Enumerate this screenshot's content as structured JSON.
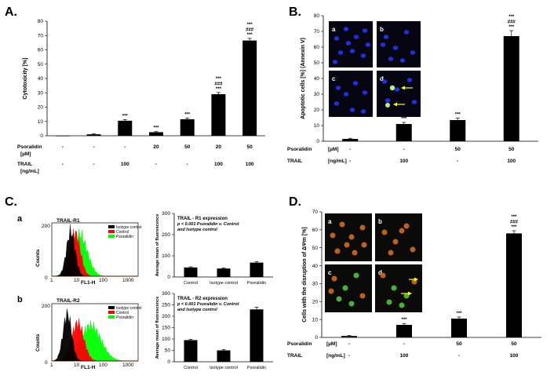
{
  "figure": {
    "panel_letters": [
      "A.",
      "B.",
      "C.",
      "D."
    ],
    "colors": {
      "bar": "#000000",
      "hist_isotype": "#000000",
      "hist_control": "#ff0000",
      "hist_psoralidin": "#00ff00",
      "nuclei_blue": "#2030e0",
      "apoptotic_green": "#b8f07a",
      "jc1_orange": "#d06a20",
      "jc1_green": "#50c040",
      "arrow": "#ffff00"
    },
    "icons": [
      "arrow-right-icon"
    ],
    "micrograph_labels_B": [
      "a",
      "b",
      "c",
      "d"
    ],
    "micrograph_labels_D": [
      "a",
      "b",
      "c",
      "d"
    ],
    "histogram_labels": {
      "a": "a",
      "b": "b",
      "title_r1": "TRAIL-R1",
      "title_r2": "TRAIL-R2",
      "counts_label": "Counts",
      "fl_label": "FL1-H",
      "legend": [
        "Isotype control",
        "Control",
        "Psoralidin"
      ],
      "y_ticks": [
        "0",
        "200"
      ],
      "x_ticks": [
        "1",
        "10",
        "100",
        "1000"
      ]
    }
  },
  "chart_data": [
    {
      "id": "A",
      "type": "bar",
      "title": "",
      "ylabel": "Cytotoxicity [%]",
      "ylim": [
        0,
        80
      ],
      "yticks": [
        0,
        10,
        20,
        30,
        40,
        50,
        60,
        70,
        80
      ],
      "values": [
        0,
        1,
        10.5,
        2.5,
        11.5,
        29,
        66.5
      ],
      "errors": [
        0,
        0.3,
        0.8,
        0.4,
        0.9,
        1.2,
        1.5
      ],
      "significance": [
        "",
        "",
        "***",
        "***",
        "***",
        "***\n###\n***",
        "***\n###\n***"
      ],
      "condition_rows": [
        {
          "label": "Psoralidin",
          "unit": "[µM]",
          "values": [
            "-",
            "-",
            "-",
            "20",
            "50",
            "20",
            "50"
          ]
        },
        {
          "label": "TRAIL",
          "unit": "[ng/mL]",
          "values": [
            "-",
            "-",
            "100",
            "-",
            "-",
            "100",
            "100"
          ]
        }
      ]
    },
    {
      "id": "B",
      "type": "bar",
      "title": "",
      "ylabel": "Apoptotic cells [%] (Annexin V)",
      "ylim": [
        0,
        80
      ],
      "yticks": [
        0,
        10,
        20,
        30,
        40,
        50,
        60,
        70,
        80
      ],
      "values": [
        1.5,
        11,
        13.5,
        67
      ],
      "errors": [
        0.4,
        1.0,
        1.2,
        3.5
      ],
      "significance": [
        "",
        "***",
        "***",
        "***\n###\n***"
      ],
      "condition_rows": [
        {
          "label": "Psoralidin",
          "unit": "[µM]",
          "values": [
            "-",
            "-",
            "50",
            "50"
          ]
        },
        {
          "label": "TRAIL",
          "unit": "[ng/mL]",
          "values": [
            "-",
            "100",
            "-",
            "100"
          ]
        }
      ]
    },
    {
      "id": "C-R1",
      "type": "bar",
      "title": "",
      "ylabel": "Average mean of fluorescence",
      "ylim": [
        0,
        300
      ],
      "yticks": [
        0,
        100,
        200,
        300
      ],
      "categories": [
        "Control",
        "Isotype control",
        "Psoralidin"
      ],
      "values": [
        45,
        40,
        68
      ],
      "errors": [
        3,
        3,
        4
      ],
      "annotation": [
        "TRAIL - R1 expression",
        "p < 0.001 Psoralidin v. Control",
        "and Isotype control"
      ]
    },
    {
      "id": "C-R2",
      "type": "bar",
      "title": "",
      "ylabel": "Average mean of fluorescence",
      "ylim": [
        0,
        300
      ],
      "yticks": [
        0,
        50,
        100,
        150,
        200,
        250,
        300
      ],
      "categories": [
        "Control",
        "Isotype control",
        "Psoralidin"
      ],
      "values": [
        95,
        50,
        230
      ],
      "errors": [
        4,
        3,
        10
      ],
      "annotation": [
        "TRAIL - R2 expression",
        "p < 0.001 Psoralidin v. Control",
        "and Isotype control"
      ]
    },
    {
      "id": "D",
      "type": "bar",
      "title": "",
      "ylabel": "Cells with the disruption of ΔΨm [%]",
      "ylim": [
        0,
        70
      ],
      "yticks": [
        0,
        10,
        20,
        30,
        40,
        50,
        60,
        70
      ],
      "values": [
        0.8,
        7,
        10.5,
        58
      ],
      "errors": [
        0.3,
        0.8,
        0.9,
        1.5
      ],
      "significance": [
        "",
        "***",
        "***",
        "***\n###\n***"
      ],
      "condition_rows": [
        {
          "label": "Psoralidin",
          "unit": "[µM]",
          "values": [
            "-",
            "-",
            "50",
            "50"
          ]
        },
        {
          "label": "TRAIL",
          "unit": "[ng/mL]",
          "values": [
            "-",
            "100",
            "-",
            "100"
          ]
        }
      ]
    }
  ]
}
